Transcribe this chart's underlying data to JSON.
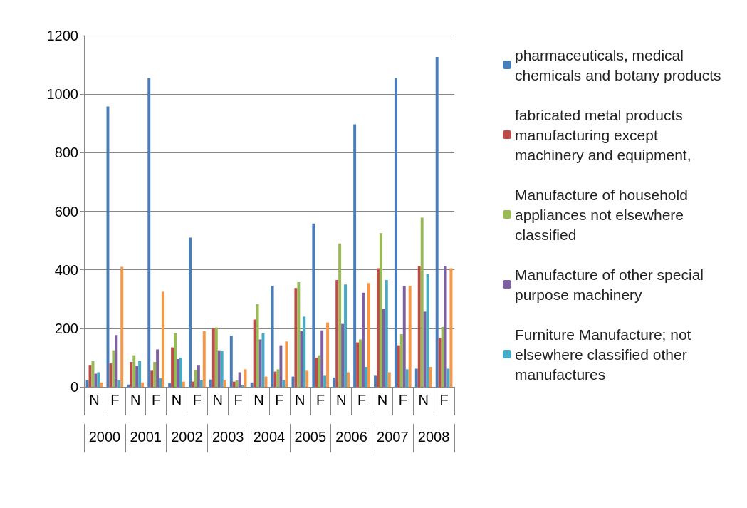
{
  "chart_data": {
    "type": "bar",
    "categories": [
      "N",
      "F",
      "N",
      "F",
      "N",
      "F",
      "N",
      "F",
      "N",
      "F",
      "N",
      "F",
      "N",
      "F",
      "N",
      "F",
      "N",
      "F"
    ],
    "annotations": [
      "2000",
      "2001",
      "2002",
      "2003",
      "2004",
      "2005",
      "2006",
      "2007",
      "2008"
    ],
    "series": [
      {
        "name": "pharmaceuticals, medical chemicals and botany products",
        "color": "#4a7ebb",
        "values": [
          22,
          958,
          8,
          1055,
          12,
          510,
          25,
          175,
          15,
          345,
          35,
          558,
          32,
          897,
          38,
          1055,
          62,
          1127
        ]
      },
      {
        "name": "fabricated metal products manufacturing except machinery and equipment,",
        "color": "#be4b48",
        "values": [
          75,
          80,
          85,
          55,
          135,
          18,
          200,
          18,
          230,
          52,
          338,
          100,
          365,
          152,
          405,
          142,
          413,
          168
        ]
      },
      {
        "name": "Manufacture of household appliances not elsewhere classified",
        "color": "#98b954",
        "values": [
          88,
          125,
          108,
          85,
          183,
          58,
          203,
          22,
          283,
          60,
          358,
          108,
          490,
          162,
          525,
          180,
          578,
          205
        ]
      },
      {
        "name": "Manufacture of other special purpose machinery",
        "color": "#7d60a0",
        "values": [
          45,
          177,
          72,
          128,
          95,
          75,
          125,
          50,
          162,
          142,
          190,
          193,
          215,
          322,
          267,
          345,
          257,
          413
        ]
      },
      {
        "name": "Furniture Manufacture; not elsewhere classified other manufactures",
        "color": "#46aac5",
        "values": [
          50,
          22,
          88,
          30,
          100,
          22,
          122,
          5,
          183,
          22,
          240,
          38,
          350,
          68,
          365,
          60,
          385,
          62
        ]
      },
      {
        "color": "#f79646",
        "values": [
          15,
          410,
          15,
          325,
          18,
          190,
          22,
          60,
          35,
          155,
          55,
          220,
          50,
          355,
          50,
          345,
          68,
          405
        ]
      }
    ],
    "ylim": [
      0,
      1200
    ],
    "yticks": [
      0,
      200,
      400,
      600,
      800,
      1000,
      1200
    ],
    "grid": "y",
    "legend": "right"
  }
}
